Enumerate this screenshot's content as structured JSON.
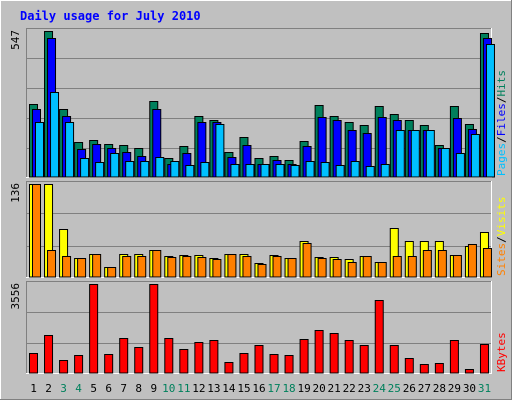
{
  "chart_data": [
    {
      "type": "bar",
      "title": "Daily usage for July 2010",
      "panel": "hits",
      "ymax_label": "547",
      "ylim": [
        0,
        547
      ],
      "categories": [
        "1",
        "2",
        "3",
        "4",
        "5",
        "6",
        "7",
        "8",
        "9",
        "10",
        "11",
        "12",
        "13",
        "14",
        "15",
        "16",
        "17",
        "18",
        "19",
        "20",
        "21",
        "22",
        "23",
        "24",
        "25",
        "26",
        "27",
        "28",
        "29",
        "30",
        "31"
      ],
      "weekend_days": [
        "3",
        "4",
        "10",
        "11",
        "17",
        "18",
        "24",
        "25",
        "31"
      ],
      "legend": [
        "Pages",
        "Files",
        "Hits"
      ],
      "legend_separator": "/",
      "series": [
        {
          "name": "Hits",
          "color": "#00805c",
          "values": [
            275,
            547,
            255,
            130,
            140,
            125,
            120,
            110,
            285,
            70,
            115,
            230,
            215,
            95,
            150,
            70,
            80,
            65,
            135,
            270,
            230,
            205,
            195,
            265,
            235,
            215,
            195,
            120,
            265,
            200,
            540
          ]
        },
        {
          "name": "Files",
          "color": "#0000ff",
          "values": [
            255,
            520,
            230,
            105,
            125,
            110,
            95,
            80,
            255,
            50,
            90,
            205,
            205,
            75,
            120,
            50,
            65,
            50,
            115,
            225,
            215,
            175,
            165,
            225,
            215,
            175,
            175,
            110,
            220,
            180,
            520
          ]
        },
        {
          "name": "Pages",
          "color": "#00c0ff",
          "values": [
            205,
            320,
            205,
            70,
            55,
            90,
            60,
            60,
            75,
            60,
            45,
            55,
            200,
            50,
            50,
            50,
            50,
            45,
            60,
            55,
            45,
            60,
            40,
            50,
            175,
            175,
            175,
            110,
            90,
            160,
            500
          ]
        }
      ]
    },
    {
      "type": "bar",
      "panel": "visits",
      "ymax_label": "136",
      "ylim": [
        0,
        136
      ],
      "legend": [
        "Sites",
        "Visits"
      ],
      "legend_separator": "/",
      "series": [
        {
          "name": "Visits",
          "color": "#ffff00",
          "values": [
            136,
            136,
            70,
            28,
            34,
            14,
            33,
            33,
            40,
            30,
            32,
            32,
            28,
            34,
            34,
            20,
            32,
            28,
            52,
            29,
            29,
            26,
            30,
            22,
            72,
            52,
            52,
            52,
            32,
            46,
            66
          ]
        },
        {
          "name": "Sites",
          "color": "#ff8000",
          "values": [
            136,
            40,
            31,
            28,
            34,
            14,
            30,
            31,
            40,
            29,
            30,
            29,
            27,
            33,
            31,
            19,
            30,
            28,
            50,
            28,
            26,
            22,
            30,
            22,
            31,
            30,
            40,
            40,
            32,
            48,
            43
          ]
        }
      ]
    },
    {
      "type": "bar",
      "panel": "kbytes",
      "ymax_label": "3556",
      "ylim": [
        0,
        3556
      ],
      "legend": [
        "KBytes"
      ],
      "series": [
        {
          "name": "KBytes",
          "color": "#ff0000",
          "values": [
            800,
            1500,
            500,
            700,
            3556,
            750,
            1400,
            1050,
            3556,
            1400,
            950,
            1250,
            1300,
            450,
            800,
            1100,
            750,
            700,
            1350,
            1700,
            1600,
            1300,
            1100,
            2900,
            1100,
            600,
            350,
            400,
            1300,
            150,
            1150
          ]
        }
      ]
    }
  ],
  "colors": {
    "frame_bg": "#c0c0c0",
    "panel_bg": "#c0c0c0",
    "grid": "#808080",
    "title_color": "#0000ff",
    "weekday_label": "#000000",
    "weekend_label": "#00805c"
  }
}
